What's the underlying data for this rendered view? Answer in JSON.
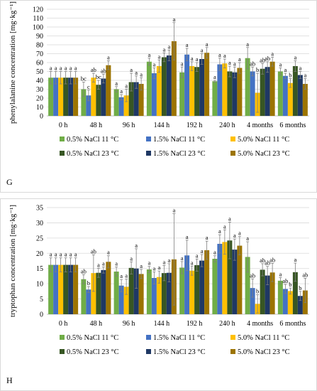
{
  "chart_data": [
    {
      "panel_label": "G",
      "type": "bar",
      "ylabel": "phenylalanine concentration [mg·kg⁻¹]",
      "ylim": [
        0,
        120
      ],
      "yticks": [
        0,
        10,
        20,
        30,
        40,
        50,
        60,
        70,
        80,
        90,
        100,
        110,
        120
      ],
      "grid": true,
      "legend_position": "bottom",
      "categories": [
        "0 h",
        "48 h",
        "96 h",
        "144 h",
        "192 h",
        "240 h",
        "4 months",
        "6 months"
      ],
      "series": [
        {
          "name": "0.5% NaCl 11 °C",
          "color": "#70ad47",
          "values": [
            43,
            30,
            30,
            61,
            49,
            39,
            65,
            50
          ],
          "errors": [
            7,
            8,
            3,
            4,
            6,
            1,
            12,
            4
          ],
          "letters": [
            "a",
            "bc",
            "a",
            "a",
            "a",
            "a",
            "a",
            "a"
          ]
        },
        {
          "name": "1.5% NaCl 11 °C",
          "color": "#4472c4",
          "values": [
            43,
            23,
            21,
            48,
            69,
            58,
            50,
            45
          ],
          "errors": [
            7,
            6,
            3,
            6,
            7,
            7,
            5,
            3
          ],
          "letters": [
            "a",
            "c",
            "a",
            "a",
            "a",
            "a",
            "ab",
            "a"
          ]
        },
        {
          "name": "5.0% NaCl 11 °C",
          "color": "#ffc000",
          "values": [
            43,
            43,
            23,
            56,
            56,
            59,
            26,
            37
          ],
          "errors": [
            7,
            5,
            7,
            7,
            5,
            5,
            22,
            5
          ],
          "letters": [
            "a",
            "ab",
            "a",
            "a",
            "a",
            "a",
            "b",
            "b"
          ]
        },
        {
          "name": "0.5% NaCl 23 °C",
          "color": "#375623",
          "values": [
            43,
            35,
            38,
            66,
            55,
            50,
            53,
            56
          ],
          "errors": [
            7,
            5,
            10,
            5,
            5,
            6,
            6,
            6
          ],
          "letters": [
            "a",
            "bc",
            "a",
            "a",
            "a",
            "a",
            "ab",
            "a"
          ]
        },
        {
          "name": "1.5% NaCl 23 °C",
          "color": "#1f3864",
          "values": [
            43,
            42,
            38,
            68,
            64,
            49,
            55,
            46
          ],
          "errors": [
            7,
            5,
            7,
            6,
            6,
            6,
            6,
            4
          ],
          "letters": [
            "a",
            "ab",
            "a",
            "a",
            "a",
            "a",
            "ab",
            "a"
          ]
        },
        {
          "name": "5.0% NaCl 23 °C",
          "color": "#9c7400",
          "values": [
            43,
            57,
            36,
            84,
            71,
            54,
            61,
            36
          ],
          "errors": [
            7,
            5,
            7,
            21,
            6,
            6,
            5,
            6
          ],
          "letters": [
            "a",
            "a",
            "a",
            "a",
            "a",
            "a",
            "a",
            "a"
          ]
        }
      ]
    },
    {
      "panel_label": "H",
      "type": "bar",
      "ylabel": "tryptophan concentration [mg·kg⁻¹]",
      "ylim": [
        0,
        35
      ],
      "yticks": [
        0,
        5,
        10,
        15,
        20,
        25,
        30,
        35
      ],
      "grid": true,
      "legend_position": "bottom",
      "categories": [
        "0 h",
        "48 h",
        "96 h",
        "144 h",
        "192 h",
        "240 h",
        "4 months",
        "6 months"
      ],
      "series": [
        {
          "name": "0.5% NaCl 11 °C",
          "color": "#70ad47",
          "values": [
            16.2,
            11.5,
            14.0,
            14.7,
            15.3,
            18.2,
            18.8,
            11.0
          ],
          "errors": [
            2.3,
            1.5,
            1.5,
            1.0,
            2.0,
            1.0,
            5.0,
            1.0
          ],
          "letters": [
            "a",
            "ab",
            "a",
            "a",
            "a",
            "a",
            "a",
            "a"
          ]
        },
        {
          "name": "1.5% NaCl 11 °C",
          "color": "#4472c4",
          "values": [
            16.2,
            8.1,
            9.4,
            11.9,
            19.3,
            23.1,
            8.6,
            8.3
          ],
          "errors": [
            2.3,
            1.0,
            2.0,
            2.0,
            5.0,
            3.0,
            3.0,
            1.5
          ],
          "letters": [
            "a",
            "b",
            "a",
            "a",
            "a",
            "a",
            "ab",
            "ab"
          ]
        },
        {
          "name": "5.0% NaCl 11 °C",
          "color": "#ffc000",
          "values": [
            16.2,
            13.5,
            9.0,
            12.2,
            14.3,
            23.7,
            3.4,
            7.6
          ],
          "errors": [
            2.3,
            6.0,
            2.5,
            2.0,
            1.5,
            4.0,
            3.0,
            1.0
          ],
          "letters": [
            "a",
            "ab",
            "a",
            "a",
            "a",
            "a",
            "b",
            "b"
          ]
        },
        {
          "name": "0.5% NaCl 23 °C",
          "color": "#375623",
          "values": [
            16.2,
            13.6,
            15.2,
            13.5,
            16.1,
            24.2,
            14.6,
            13.8
          ],
          "errors": [
            2.3,
            1.5,
            2.0,
            2.5,
            2.0,
            6.0,
            2.0,
            3.0
          ],
          "letters": [
            "a",
            "a",
            "a",
            "a",
            "a",
            "a",
            "ab",
            "a"
          ]
        },
        {
          "name": "1.5% NaCl 23 °C",
          "color": "#1f3864",
          "values": [
            16.2,
            14.5,
            15.0,
            13.6,
            17.6,
            21.2,
            12.7,
            6.0
          ],
          "errors": [
            2.3,
            1.0,
            6.5,
            3.0,
            2.0,
            3.5,
            3.0,
            1.5
          ],
          "letters": [
            "a",
            "a",
            "a",
            "a",
            "a",
            "a",
            "ab",
            "b"
          ]
        },
        {
          "name": "5.0% NaCl 23 °C",
          "color": "#9c7400",
          "values": [
            16.2,
            17.2,
            13.2,
            18.0,
            21.0,
            22.5,
            13.7,
            7.8
          ],
          "errors": [
            2.3,
            2.0,
            1.5,
            15.0,
            3.0,
            3.0,
            3.0,
            4.0
          ],
          "letters": [
            "a",
            "a",
            "a",
            "a",
            "a",
            "a",
            "ab",
            "ab"
          ]
        }
      ]
    }
  ]
}
